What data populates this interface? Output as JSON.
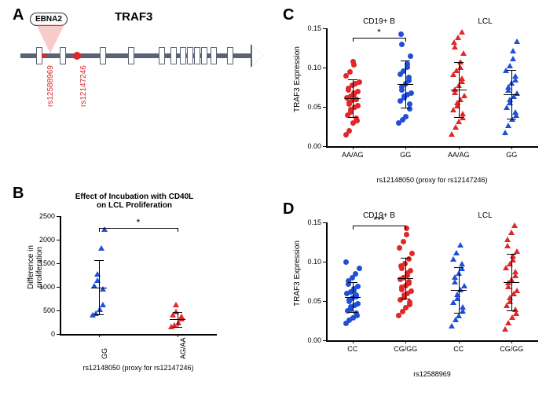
{
  "panelA": {
    "label": "A",
    "gene_name": "TRAF3",
    "ebna_label": "EBNA2",
    "track_color": "#5a6273",
    "exon_positions_pct": [
      8,
      18,
      35,
      47,
      60,
      65,
      69,
      72,
      75,
      78,
      82,
      89
    ],
    "arrow_end_pct": 97,
    "snps": [
      {
        "id": "rs12588969",
        "pos_pct": 10,
        "color": "#e12727",
        "small": true
      },
      {
        "id": "rs12147246",
        "pos_pct": 24,
        "color": "#e12727",
        "small": false
      }
    ],
    "beam_color": "#f08b8b"
  },
  "panelB": {
    "label": "B",
    "title": "Effect of Incubation with CD40L\non LCL Proliferation",
    "ylab": "Difference in proliferation",
    "caption": "rs12148050 (proxy for rs12147246)",
    "ylim": [
      0,
      2500
    ],
    "ytick_step": 500,
    "groups": [
      {
        "name": "GG",
        "color": "#1f4fd6",
        "shape": "tri",
        "x": 0,
        "mean": 990,
        "sd": 580,
        "points": [
          380,
          420,
          500,
          600,
          930,
          1000,
          1120,
          1250,
          1800,
          2200
        ]
      },
      {
        "name": "AG/AA",
        "color": "#e12727",
        "shape": "tri",
        "x": 1,
        "mean": 310,
        "sd": 155,
        "points": [
          130,
          170,
          210,
          300,
          350,
          390,
          450,
          600
        ]
      }
    ],
    "sig": {
      "between": [
        0,
        1
      ],
      "label": "*",
      "y": 2250
    }
  },
  "panelC": {
    "label": "C",
    "ylab": "TRAF3 Expression",
    "caption": "rs12148050 (proxy for rs12147246)",
    "ylim": [
      0,
      0.15
    ],
    "ytick_step": 0.05,
    "supergroups": [
      "CD19+ B",
      "LCL"
    ],
    "groups": [
      {
        "name": "AA/AG",
        "color": "#e12727",
        "shape": "dot",
        "x": 0,
        "super": 0,
        "mean": 0.061,
        "sd": 0.024,
        "points": [
          0.015,
          0.02,
          0.03,
          0.033,
          0.036,
          0.04,
          0.044,
          0.047,
          0.05,
          0.052,
          0.054,
          0.056,
          0.059,
          0.06,
          0.06,
          0.062,
          0.064,
          0.066,
          0.068,
          0.07,
          0.072,
          0.074,
          0.078,
          0.08,
          0.082,
          0.09,
          0.095,
          0.104,
          0.108
        ]
      },
      {
        "name": "GG",
        "color": "#1f4fd6",
        "shape": "dot",
        "x": 1,
        "super": 0,
        "mean": 0.079,
        "sd": 0.03,
        "points": [
          0.03,
          0.034,
          0.038,
          0.048,
          0.054,
          0.058,
          0.062,
          0.064,
          0.066,
          0.068,
          0.072,
          0.076,
          0.08,
          0.084,
          0.088,
          0.092,
          0.096,
          0.101,
          0.105,
          0.115,
          0.13,
          0.143
        ]
      },
      {
        "name": "AA/AG",
        "color": "#e12727",
        "shape": "tri",
        "x": 2,
        "super": 1,
        "mean": 0.072,
        "sd": 0.035,
        "points": [
          0.014,
          0.023,
          0.03,
          0.035,
          0.04,
          0.045,
          0.05,
          0.054,
          0.058,
          0.063,
          0.067,
          0.071,
          0.076,
          0.081,
          0.085,
          0.09,
          0.095,
          0.099,
          0.106,
          0.117,
          0.125,
          0.131,
          0.137,
          0.144
        ]
      },
      {
        "name": "GG",
        "color": "#1f4fd6",
        "shape": "tri",
        "x": 3,
        "super": 1,
        "mean": 0.066,
        "sd": 0.031,
        "points": [
          0.016,
          0.025,
          0.033,
          0.038,
          0.042,
          0.048,
          0.054,
          0.058,
          0.062,
          0.066,
          0.07,
          0.074,
          0.079,
          0.083,
          0.088,
          0.095,
          0.101,
          0.11,
          0.12,
          0.132
        ]
      }
    ],
    "sig": {
      "between": [
        0,
        1
      ],
      "label": "*",
      "y": 0.138
    }
  },
  "panelD": {
    "label": "D",
    "ylab": "TRAF3 Expression",
    "caption": "rs12588969",
    "ylim": [
      0,
      0.15
    ],
    "ytick_step": 0.05,
    "supergroups": [
      "CD19+ B",
      "LCL"
    ],
    "groups": [
      {
        "name": "CC",
        "color": "#1f4fd6",
        "shape": "dot",
        "x": 0,
        "super": 0,
        "mean": 0.055,
        "sd": 0.019,
        "points": [
          0.022,
          0.026,
          0.029,
          0.032,
          0.035,
          0.038,
          0.04,
          0.043,
          0.045,
          0.047,
          0.05,
          0.052,
          0.054,
          0.056,
          0.058,
          0.06,
          0.062,
          0.064,
          0.066,
          0.069,
          0.072,
          0.076,
          0.08,
          0.085,
          0.092,
          0.1
        ]
      },
      {
        "name": "CG/GG",
        "color": "#e12727",
        "shape": "dot",
        "x": 1,
        "super": 0,
        "mean": 0.079,
        "sd": 0.026,
        "points": [
          0.032,
          0.037,
          0.042,
          0.046,
          0.049,
          0.052,
          0.055,
          0.058,
          0.06,
          0.063,
          0.065,
          0.068,
          0.07,
          0.073,
          0.075,
          0.078,
          0.08,
          0.083,
          0.086,
          0.089,
          0.092,
          0.095,
          0.098,
          0.104,
          0.111,
          0.118,
          0.126,
          0.135,
          0.143
        ]
      },
      {
        "name": "CC",
        "color": "#1f4fd6",
        "shape": "tri",
        "x": 2,
        "super": 1,
        "mean": 0.064,
        "sd": 0.029,
        "points": [
          0.017,
          0.025,
          0.03,
          0.036,
          0.041,
          0.047,
          0.052,
          0.057,
          0.063,
          0.068,
          0.073,
          0.079,
          0.084,
          0.09,
          0.096,
          0.102,
          0.11,
          0.12
        ]
      },
      {
        "name": "CG/GG",
        "color": "#e12727",
        "shape": "tri",
        "x": 3,
        "super": 1,
        "mean": 0.074,
        "sd": 0.036,
        "points": [
          0.013,
          0.021,
          0.028,
          0.033,
          0.038,
          0.043,
          0.048,
          0.053,
          0.058,
          0.062,
          0.067,
          0.072,
          0.076,
          0.081,
          0.086,
          0.091,
          0.096,
          0.101,
          0.106,
          0.112,
          0.119,
          0.127,
          0.136,
          0.145
        ]
      }
    ],
    "sig": {
      "between": [
        0,
        1
      ],
      "label": "***",
      "y": 0.146
    }
  }
}
